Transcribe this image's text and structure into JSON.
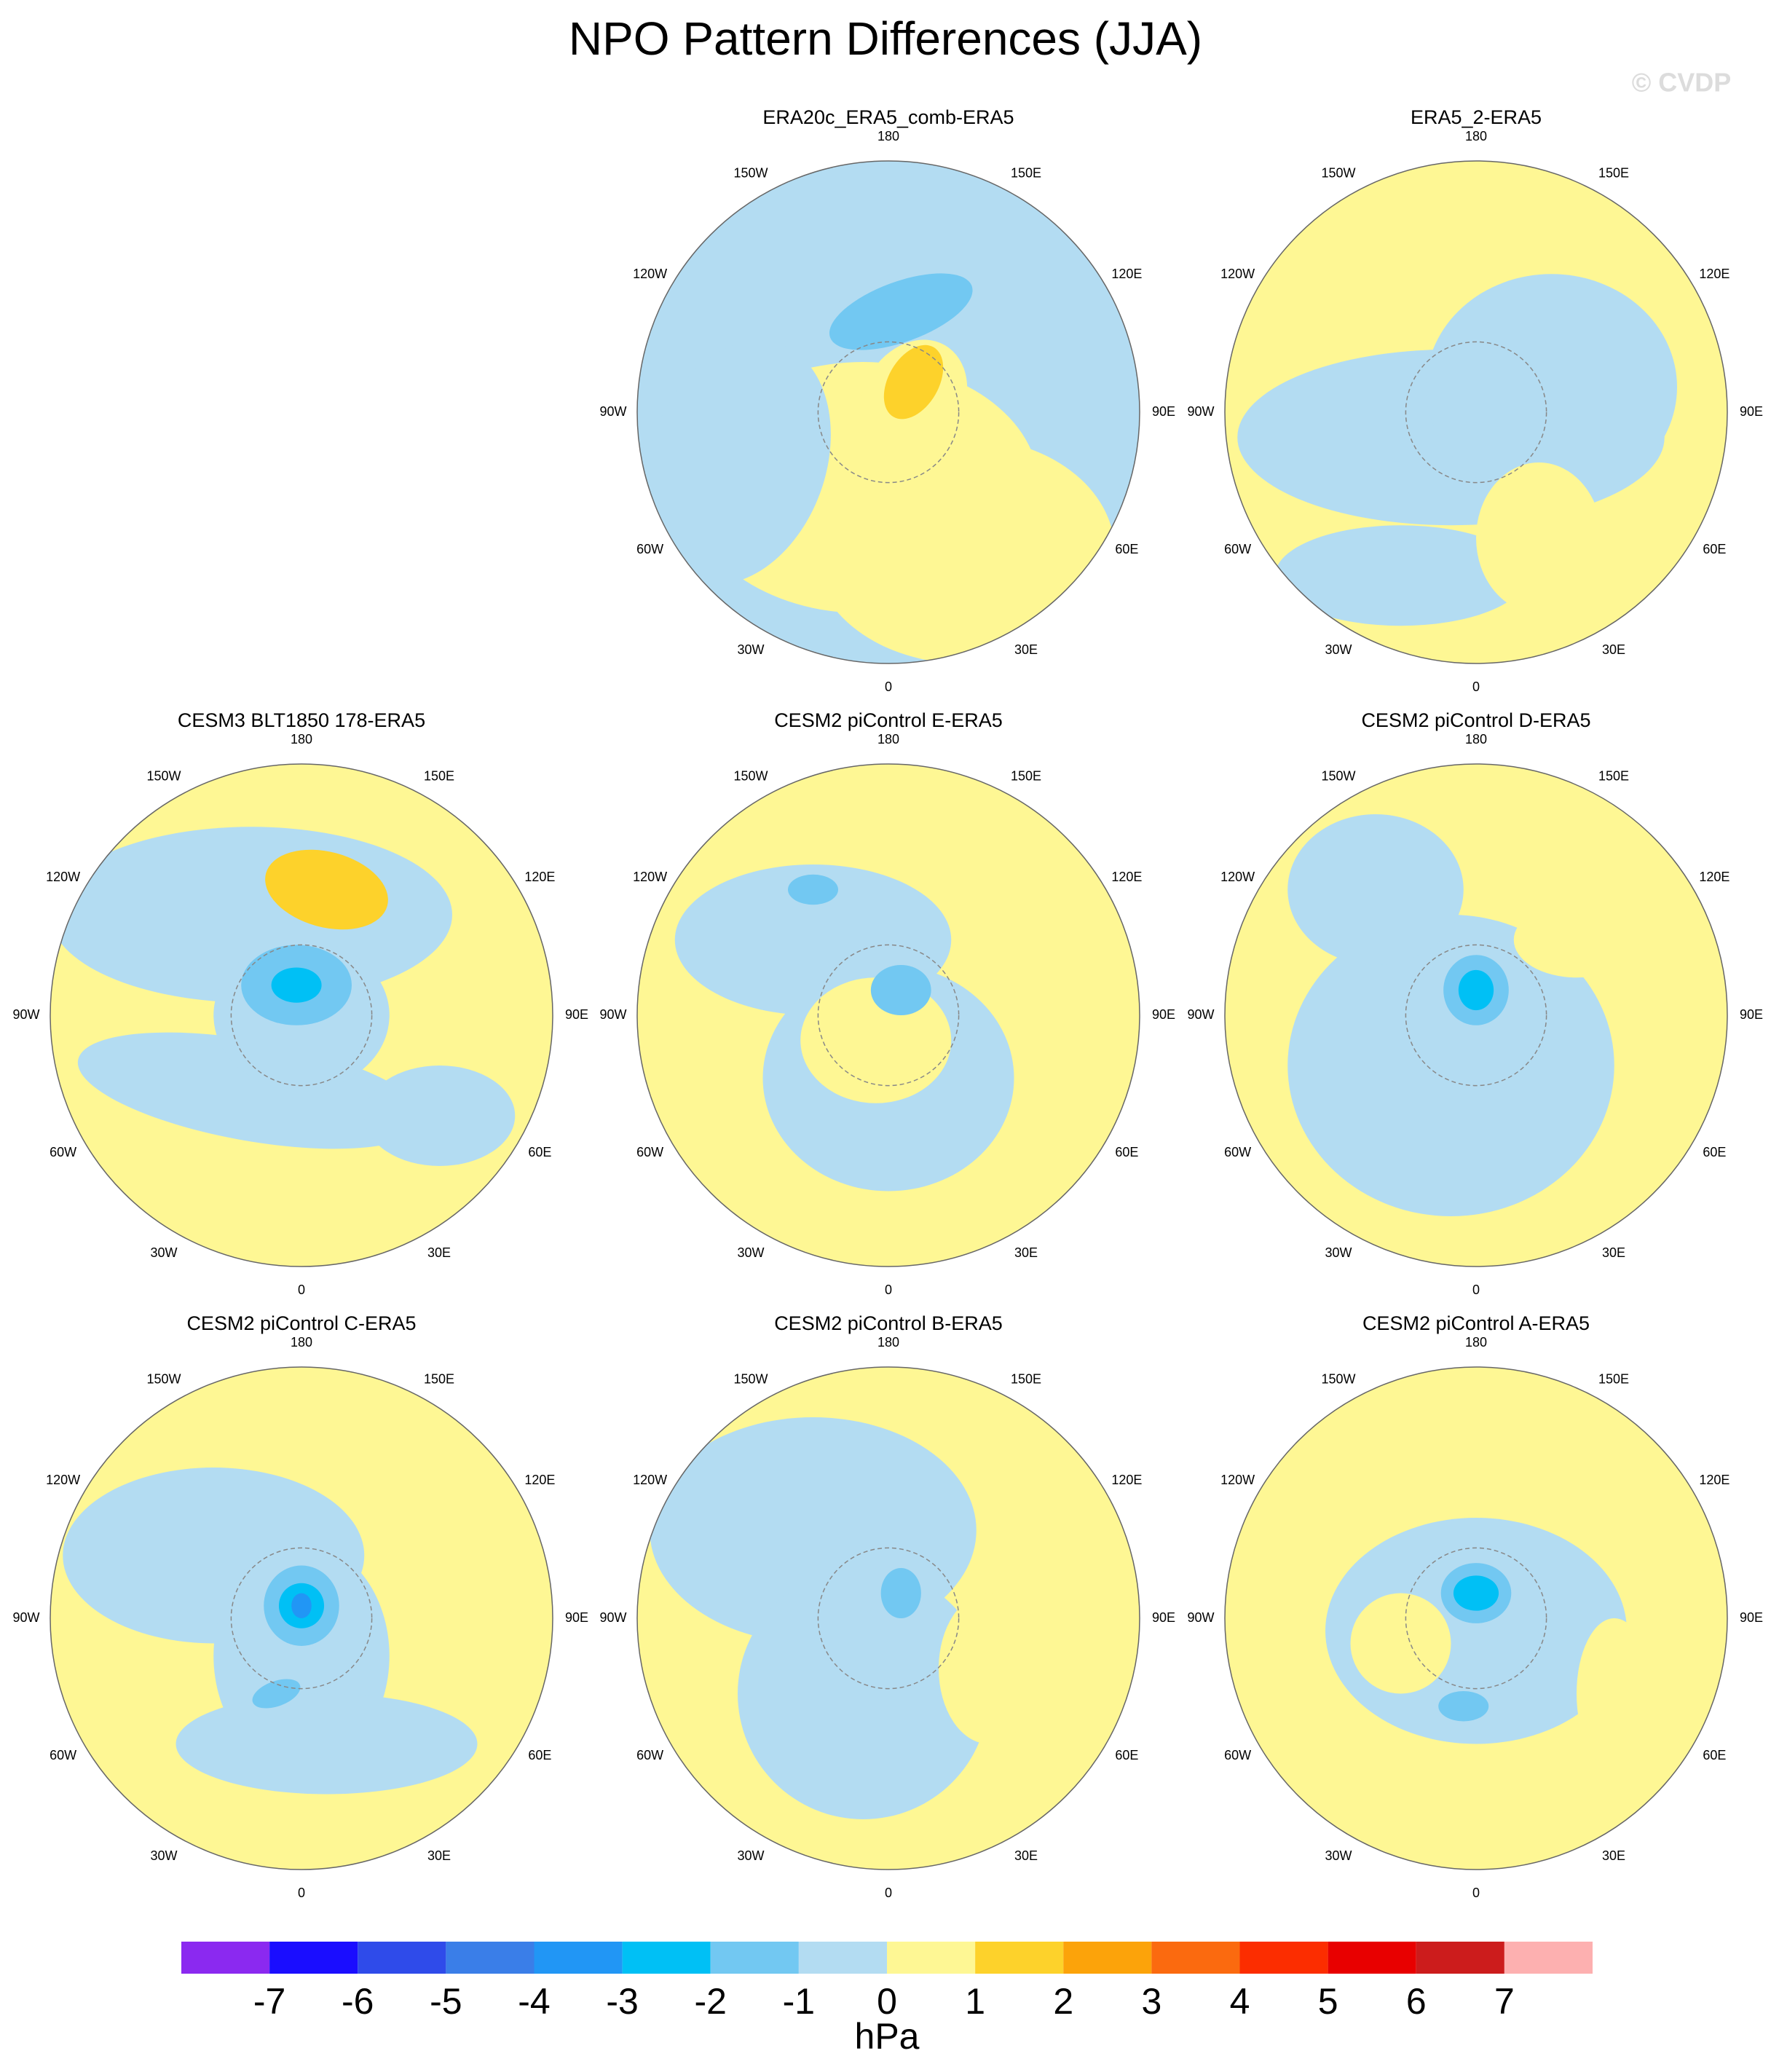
{
  "title": "NPO Pattern Differences (JJA)",
  "watermark": "© CVDP",
  "lon_labels": [
    "180",
    "150E",
    "120E",
    "90E",
    "60E",
    "30E",
    "0",
    "30W",
    "60W",
    "90W",
    "120W",
    "150W"
  ],
  "panels": [
    {
      "title": "ERA20c_ERA5_comb-ERA5"
    },
    {
      "title": "ERA5_2-ERA5"
    },
    {
      "title": "CESM3 BLT1850 178-ERA5"
    },
    {
      "title": "CESM2 piControl E-ERA5"
    },
    {
      "title": "CESM2 piControl D-ERA5"
    },
    {
      "title": "CESM2 piControl C-ERA5"
    },
    {
      "title": "CESM2 piControl B-ERA5"
    },
    {
      "title": "CESM2 piControl A-ERA5"
    }
  ],
  "colorbar": {
    "levels": [
      -7,
      -6,
      -5,
      -4,
      -3,
      -2,
      -1,
      0,
      1,
      2,
      3,
      4,
      5,
      6,
      7
    ],
    "colors": [
      "#8b29f0",
      "#1a0dff",
      "#2f4bea",
      "#3a7ee8",
      "#2196f5",
      "#00c0f5",
      "#72c8f2",
      "#b3dcf2",
      "#fef794",
      "#fdd22b",
      "#fca30a",
      "#fb6a0f",
      "#fc2d00",
      "#e80000",
      "#cc1c1c",
      "#fdb0b0"
    ],
    "unit": "hPa"
  }
}
